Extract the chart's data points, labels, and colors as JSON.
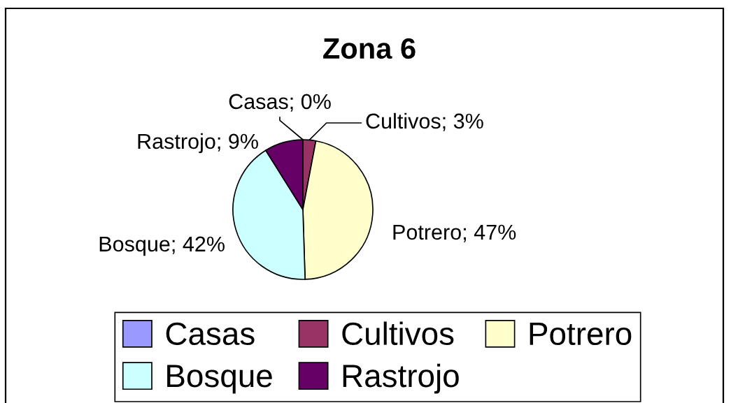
{
  "chart_data": {
    "type": "pie",
    "title": "Zona 6",
    "categories": [
      "Casas",
      "Cultivos",
      "Potrero",
      "Bosque",
      "Rastrojo"
    ],
    "values": [
      0,
      3,
      47,
      42,
      9
    ],
    "colors": [
      "#9999ff",
      "#993366",
      "#ffffcc",
      "#ccffff",
      "#660066"
    ],
    "value_labels": [
      "Casas; 0%",
      "Cultivos; 3%",
      "Potrero; 47%",
      "Bosque; 42%",
      "Rastrojo; 9%"
    ],
    "legend": "bottom"
  }
}
